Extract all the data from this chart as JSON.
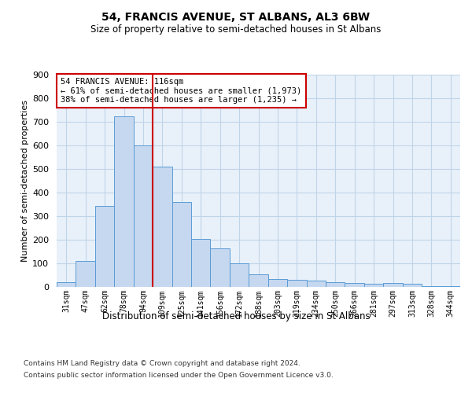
{
  "title": "54, FRANCIS AVENUE, ST ALBANS, AL3 6BW",
  "subtitle": "Size of property relative to semi-detached houses in St Albans",
  "xlabel": "Distribution of semi-detached houses by size in St Albans",
  "ylabel": "Number of semi-detached properties",
  "categories": [
    "31sqm",
    "47sqm",
    "62sqm",
    "78sqm",
    "94sqm",
    "109sqm",
    "125sqm",
    "141sqm",
    "156sqm",
    "172sqm",
    "188sqm",
    "203sqm",
    "219sqm",
    "234sqm",
    "250sqm",
    "266sqm",
    "281sqm",
    "297sqm",
    "313sqm",
    "328sqm",
    "344sqm"
  ],
  "values": [
    20,
    110,
    345,
    725,
    600,
    510,
    360,
    205,
    165,
    100,
    55,
    35,
    30,
    28,
    20,
    18,
    15,
    17,
    12,
    3,
    3
  ],
  "bar_color": "#c5d8f0",
  "bar_edge_color": "#5b9bd5",
  "grid_color": "#c0d4e8",
  "annotation_text": "54 FRANCIS AVENUE: 116sqm\n← 61% of semi-detached houses are smaller (1,973)\n38% of semi-detached houses are larger (1,235) →",
  "annotation_box_color": "#ffffff",
  "annotation_box_edge_color": "#cc0000",
  "property_line_x": 4.5,
  "property_line_color": "#cc0000",
  "ylim": [
    0,
    900
  ],
  "yticks": [
    0,
    100,
    200,
    300,
    400,
    500,
    600,
    700,
    800,
    900
  ],
  "footer_line1": "Contains HM Land Registry data © Crown copyright and database right 2024.",
  "footer_line2": "Contains public sector information licensed under the Open Government Licence v3.0.",
  "bg_color": "#e8f1fa",
  "fig_bg_color": "#ffffff"
}
